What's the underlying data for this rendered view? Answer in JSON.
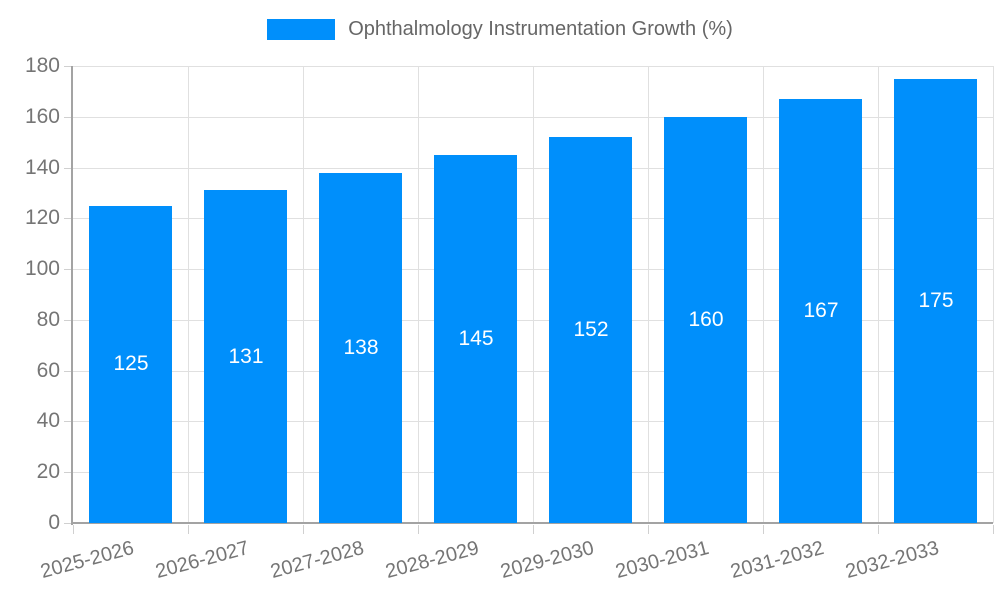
{
  "chart_data": {
    "type": "bar",
    "title": "Ophthalmology Instrumentation Growth (%)",
    "legend": {
      "position": "top",
      "label": "Ophthalmology Instrumentation Growth (%)"
    },
    "categories": [
      "2025-2026",
      "2026-2027",
      "2027-2028",
      "2028-2029",
      "2029-2030",
      "2030-2031",
      "2031-2032",
      "2032-2033"
    ],
    "values": [
      125,
      131,
      138,
      145,
      152,
      160,
      167,
      175
    ],
    "value_labels": [
      "125",
      "131",
      "138",
      "145",
      "152",
      "160",
      "167",
      "175"
    ],
    "xlabel": "",
    "ylabel": "",
    "ylim": [
      0,
      180
    ],
    "yticks": [
      0,
      20,
      40,
      60,
      80,
      100,
      120,
      140,
      160,
      180
    ],
    "grid": "both",
    "colors": {
      "bar": "#008FFB",
      "grid": "#e0e0e0",
      "axis": "#a3a3a3",
      "axis_label": "#757575",
      "legend_text": "#666666",
      "value_label": "#ffffff"
    }
  }
}
